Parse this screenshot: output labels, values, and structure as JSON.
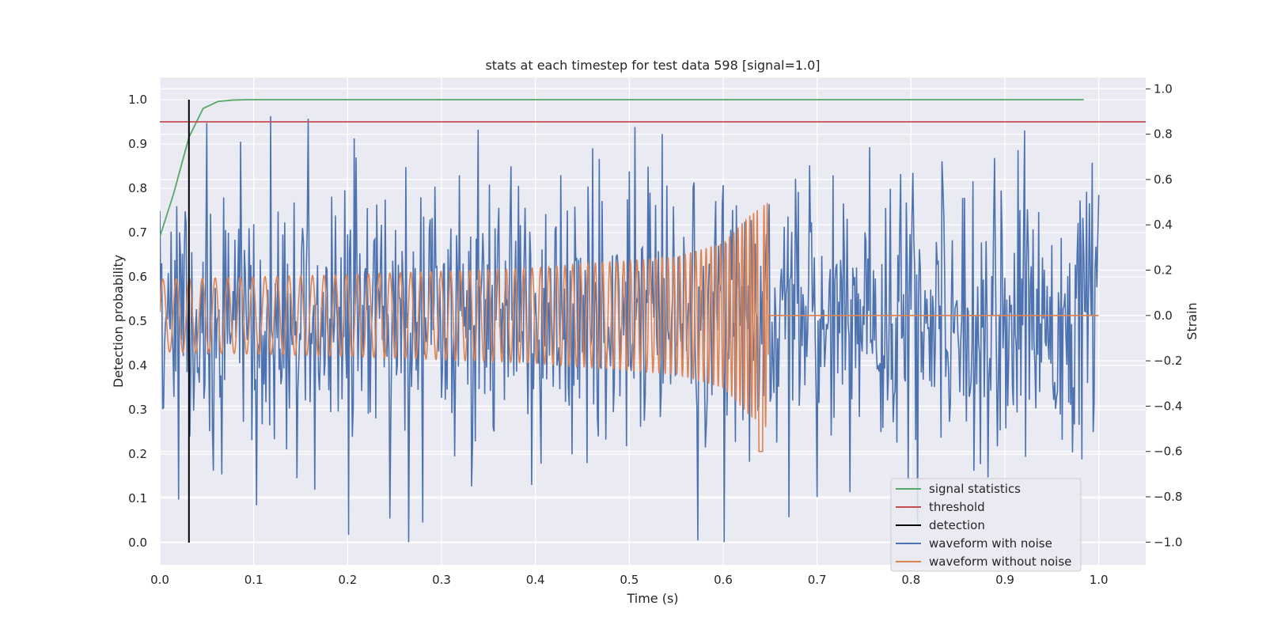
{
  "chart_data": {
    "type": "line",
    "title": "stats at each timestep for test data 598 [signal=1.0]",
    "xlabel": "Time (s)",
    "ylabel": "Detection probability",
    "y2label": "Strain",
    "xlim": [
      0.0,
      1.05
    ],
    "ylim": [
      -0.05,
      1.05
    ],
    "y2lim": [
      -1.1,
      1.05
    ],
    "xticks": [
      0.0,
      0.1,
      0.2,
      0.3,
      0.4,
      0.5,
      0.6,
      0.7,
      0.8,
      0.9,
      1.0
    ],
    "xtick_labels": [
      "0.0",
      "0.1",
      "0.2",
      "0.3",
      "0.4",
      "0.5",
      "0.6",
      "0.7",
      "0.8",
      "0.9",
      "1.0"
    ],
    "yticks": [
      0.0,
      0.1,
      0.2,
      0.3,
      0.4,
      0.5,
      0.6,
      0.7,
      0.8,
      0.9,
      1.0
    ],
    "ytick_labels": [
      "0.0",
      "0.1",
      "0.2",
      "0.3",
      "0.4",
      "0.5",
      "0.6",
      "0.7",
      "0.8",
      "0.9",
      "1.0"
    ],
    "y2ticks": [
      -1.0,
      -0.8,
      -0.6,
      -0.4,
      -0.2,
      0.0,
      0.2,
      0.4,
      0.6,
      0.8,
      1.0
    ],
    "y2tick_labels": [
      "−1.0",
      "−0.8",
      "−0.6",
      "−0.4",
      "−0.2",
      "0.0",
      "0.2",
      "0.4",
      "0.6",
      "0.8",
      "1.0"
    ],
    "grid": true,
    "legend_position": "lower-right",
    "series": [
      {
        "name": "signal statistics",
        "axis": "left",
        "color": "#55a868",
        "x": [
          0.0,
          0.015,
          0.031,
          0.046,
          0.062,
          0.077,
          0.093,
          0.11,
          0.2,
          0.4,
          0.6,
          0.8,
          0.984
        ],
        "y": [
          0.69,
          0.79,
          0.915,
          0.98,
          0.996,
          0.999,
          1.0,
          1.0,
          1.0,
          1.0,
          1.0,
          1.0,
          1.0
        ]
      },
      {
        "name": "threshold",
        "axis": "left",
        "color": "#c44e52",
        "x": [
          0.0,
          1.05
        ],
        "y": [
          0.95,
          0.95
        ]
      },
      {
        "name": "detection",
        "axis": "left",
        "color": "#000000",
        "x": [
          0.031,
          0.031
        ],
        "y": [
          0.0,
          1.0
        ]
      },
      {
        "name": "waveform with noise",
        "axis": "right",
        "color": "#4c72b0",
        "noise_points": 1000,
        "strain_range": [
          -1.0,
          1.0
        ]
      },
      {
        "name": "waveform without noise",
        "axis": "right",
        "color": "#dd8452",
        "t_end": 0.648,
        "envelope": [
          {
            "t": 0.0,
            "a": 0.16
          },
          {
            "t": 0.2,
            "a": 0.18
          },
          {
            "t": 0.4,
            "a": 0.21
          },
          {
            "t": 0.55,
            "a": 0.26
          },
          {
            "t": 0.6,
            "a": 0.32
          },
          {
            "t": 0.63,
            "a": 0.45
          },
          {
            "t": 0.648,
            "a": 0.5
          }
        ],
        "asymmetry": {
          "t": 0.64,
          "min": -0.6
        },
        "after_t_end": 0.0
      }
    ]
  }
}
